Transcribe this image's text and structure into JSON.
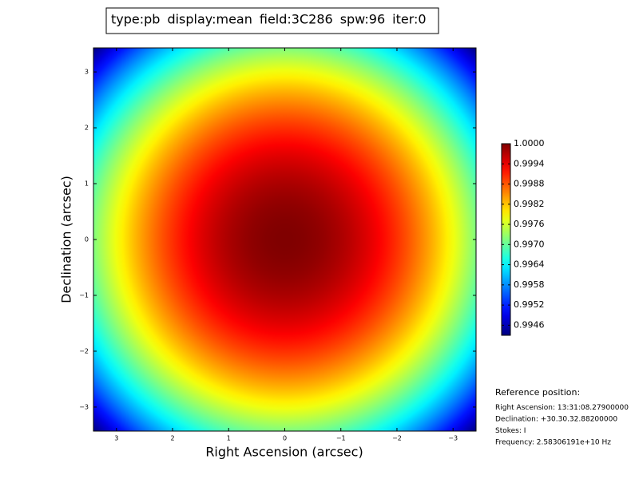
{
  "chart_data": {
    "type": "image",
    "title_parts": [
      {
        "text": "type:pb",
        "color": "#000000"
      },
      {
        "text": "display:mean",
        "color": "#ff0000"
      },
      {
        "text": "field:3C286",
        "color": "#000000"
      },
      {
        "text": "spw:96",
        "color": "#000000"
      },
      {
        "text": "iter:0",
        "color": "#000000"
      }
    ],
    "x_label": "Right Ascension (arcsec)",
    "y_label": "Declination (arcsec)",
    "xlim": [
      3.41,
      -3.41
    ],
    "ylim": [
      -3.43,
      3.43
    ],
    "xticks": [
      3,
      2,
      1,
      0,
      {
        "value": -1,
        "label": "−1"
      },
      {
        "value": -2,
        "label": "−2"
      },
      {
        "value": -3,
        "label": "−3"
      }
    ],
    "yticks": [
      {
        "value": -3,
        "label": "−3"
      },
      {
        "value": -2,
        "label": "−2"
      },
      {
        "value": -1,
        "label": "−1"
      },
      0,
      1,
      2,
      3
    ],
    "colormap": "jet",
    "clim": [
      0.9943,
      1.0
    ],
    "cticks": [
      {
        "value": 1,
        "label": "1.0000"
      },
      0.9994,
      0.9988,
      0.9982,
      0.9976,
      {
        "value": 0.997,
        "label": "0.9970"
      },
      0.9964,
      0.9958,
      0.9952,
      0.9946
    ],
    "annotations": [
      "Reference position:",
      "Right Ascension: 13:31:08.27900000",
      "Declination: +30.30.32.88200000",
      "Stokes: I",
      "Frequency: 2.58306191e+10 Hz"
    ]
  }
}
